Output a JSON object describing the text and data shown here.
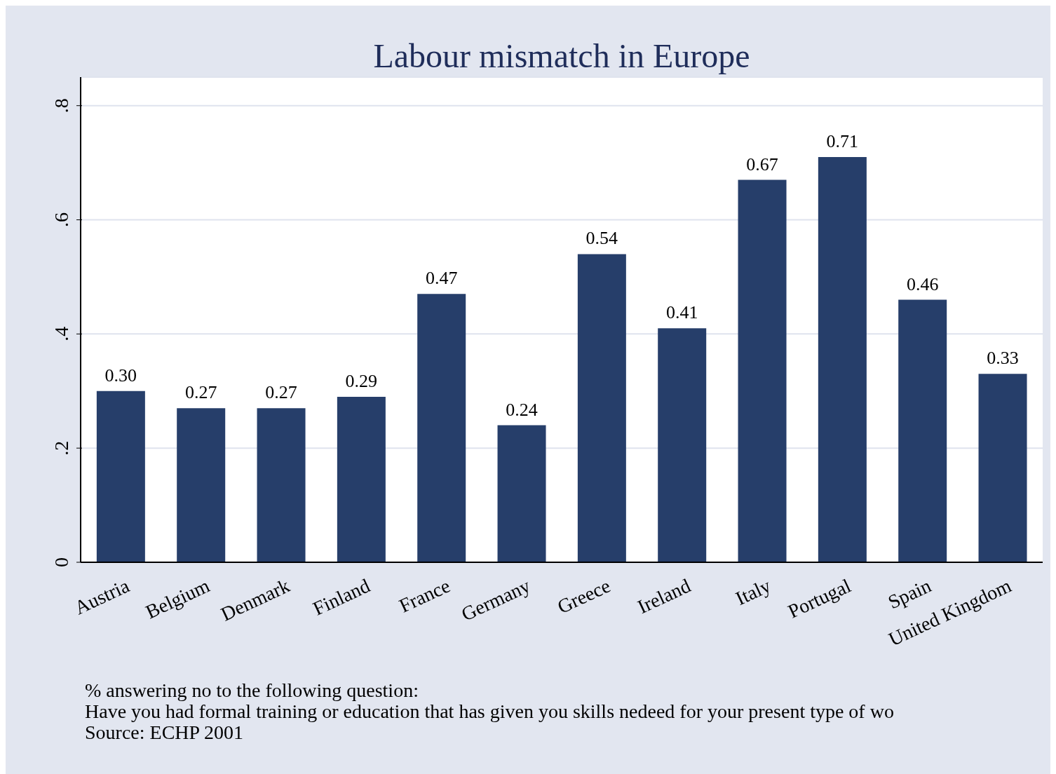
{
  "chart_data": {
    "type": "bar",
    "title": "Labour mismatch in Europe",
    "categories": [
      "Austria",
      "Belgium",
      "Denmark",
      "Finland",
      "France",
      "Germany",
      "Greece",
      "Ireland",
      "Italy",
      "Portugal",
      "Spain",
      "United Kingdom"
    ],
    "values": [
      0.3,
      0.27,
      0.27,
      0.29,
      0.47,
      0.24,
      0.54,
      0.41,
      0.67,
      0.71,
      0.46,
      0.33
    ],
    "value_labels": [
      "0.30",
      "0.27",
      "0.27",
      "0.29",
      "0.47",
      "0.24",
      "0.54",
      "0.41",
      "0.67",
      "0.71",
      "0.46",
      "0.33"
    ],
    "color": "#263e6a",
    "ylim": [
      0,
      0.85
    ],
    "yticks": [
      {
        "value": 0,
        "label": "0"
      },
      {
        "value": 0.2,
        "label": ".2"
      },
      {
        "value": 0.4,
        "label": ".4"
      },
      {
        "value": 0.6,
        "label": ".6"
      },
      {
        "value": 0.8,
        "label": ".8"
      }
    ],
    "grid": "y",
    "annotations": [
      "% answering no to the following question:",
      "Have you had formal training or education that has given you skills nedeed for your present type of wo",
      "Source: ECHP 2001"
    ]
  }
}
